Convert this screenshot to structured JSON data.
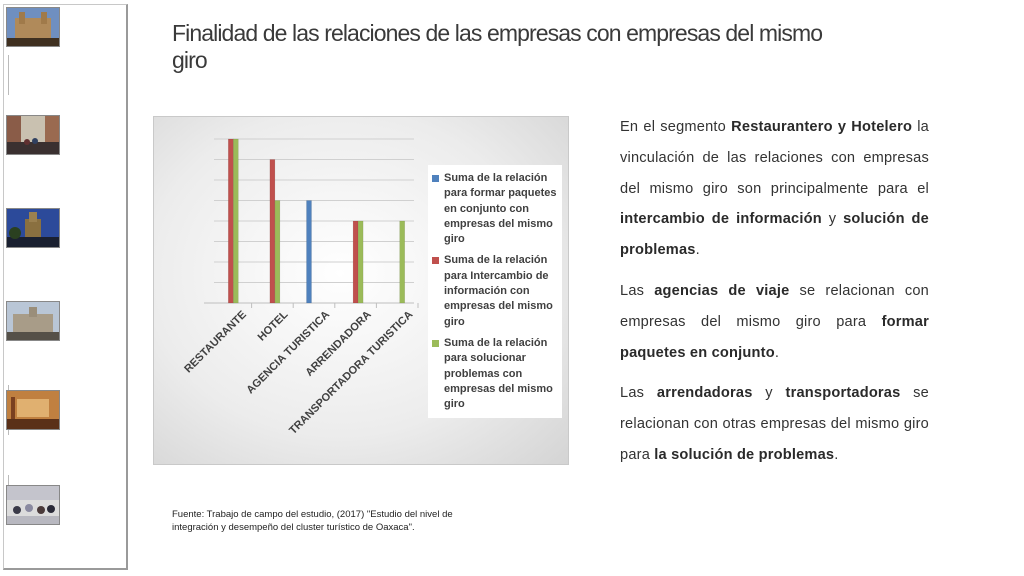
{
  "title": "Finalidad de las relaciones  de las empresas con empresas del mismo giro",
  "sidebar": {
    "thumbnails": [
      {
        "name": "thumb-cathedral",
        "colors": [
          "#5a7db5",
          "#b08a5a",
          "#3f3020"
        ]
      },
      {
        "name": "thumb-street",
        "colors": [
          "#c9c1b0",
          "#8a5c48",
          "#3a3030"
        ]
      },
      {
        "name": "thumb-night-church",
        "colors": [
          "#2c4a9a",
          "#8a7040",
          "#1a2030"
        ]
      },
      {
        "name": "thumb-square",
        "colors": [
          "#b9c6d6",
          "#a89c88",
          "#555048"
        ]
      },
      {
        "name": "thumb-hotel-room",
        "colors": [
          "#c08040",
          "#e0b070",
          "#5a3018"
        ]
      },
      {
        "name": "thumb-crowd",
        "colors": [
          "#dcdcdc",
          "#8a8aa0",
          "#3a3a48"
        ]
      }
    ]
  },
  "chart_data": {
    "type": "bar",
    "title": "",
    "categories": [
      "RESTAURANTE",
      "HOTEL",
      "AGENCIA TURISTICA",
      "ARRENDADORA",
      "TRANSPORTADORA TURISTICA"
    ],
    "series": [
      {
        "name": "Suma de la relación para  formar paquetes en conjunto con empresas del mismo giro",
        "color": "#4f81bd",
        "values": [
          0,
          0,
          5,
          0,
          0
        ]
      },
      {
        "name": "Suma de la relación para Intercambio de información con empresas del mismo giro",
        "color": "#c0504d",
        "values": [
          8,
          7,
          0,
          4,
          0
        ]
      },
      {
        "name": "Suma de la relación para solucionar problemas con empresas del mismo giro",
        "color": "#9bbb59",
        "values": [
          8,
          5,
          0,
          4,
          4
        ]
      }
    ],
    "ylim": [
      0,
      8
    ],
    "grid": true,
    "legend": "right"
  },
  "source": "Fuente: Trabajo de campo del estudio, (2017)  \"Estudio del nivel de integración y desempeño del cluster turístico de  Oaxaca\".",
  "body": {
    "p1": {
      "t1": "En el segmento ",
      "b1": "Restaurantero y Hotelero",
      "t2": " la vinculación de las relaciones con empresas del mismo giro  son principalmente para el ",
      "b2": "intercambio de información",
      "t3": " y ",
      "b3": "solución de problemas",
      "t4": "."
    },
    "p2": {
      "t1": "Las ",
      "b1": "agencias de viaje",
      "t2": " se relacionan con empresas del mismo giro para ",
      "b2": "formar paquetes en conjunto",
      "t3": "."
    },
    "p3": {
      "t1": "Las ",
      "b1": "arrendadoras",
      "t2": " y ",
      "b2": "transportadoras",
      "t3": " se relacionan con otras empresas del mismo giro  para ",
      "b3": "la solución de problemas",
      "t4": "."
    }
  }
}
